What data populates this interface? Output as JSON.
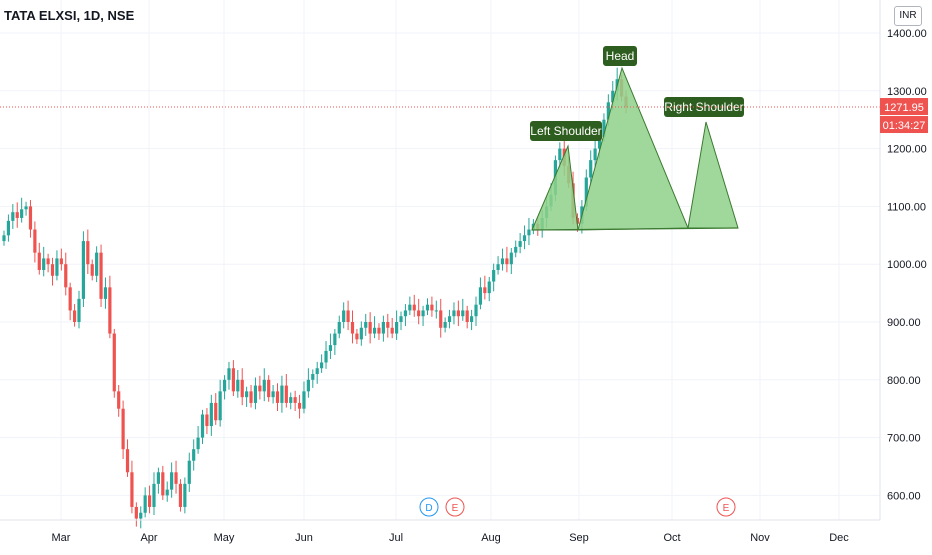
{
  "header": {
    "title": "TATA ELXSI, 1D, NSE"
  },
  "currency": "INR",
  "price_tag": {
    "price": "1271.95",
    "countdown": "01:34:27"
  },
  "event_markers": [
    "D",
    "E",
    "E"
  ],
  "colors": {
    "up": "#26a69a",
    "down": "#ef5350",
    "pattern_fill": "#8fd18a",
    "pattern_stroke": "#3b7a31",
    "label_bg": "#2e5e1f",
    "dividend": "#2196f3"
  },
  "chart_data": {
    "type": "candlestick",
    "title": "TATA ELXSI, 1D, NSE",
    "xlabel": "",
    "ylabel": "",
    "x_ticks": [
      "Mar",
      "Apr",
      "May",
      "Jun",
      "Jul",
      "Aug",
      "Sep",
      "Oct",
      "Nov",
      "Dec"
    ],
    "y_ticks": [
      "1400.00",
      "1300.00",
      "1200.00",
      "1100.00",
      "1000.00",
      "900.00",
      "800.00",
      "700.00",
      "600.00"
    ],
    "ylim": [
      560,
      1420
    ],
    "last_price": 1271.95,
    "closes": [
      1050,
      1075,
      1090,
      1080,
      1095,
      1100,
      1060,
      1020,
      990,
      1010,
      1000,
      980,
      1010,
      1000,
      960,
      920,
      900,
      940,
      1040,
      1000,
      980,
      1020,
      940,
      960,
      880,
      780,
      750,
      680,
      640,
      580,
      560,
      570,
      600,
      580,
      620,
      640,
      600,
      610,
      640,
      620,
      580,
      620,
      660,
      680,
      700,
      740,
      720,
      760,
      730,
      780,
      800,
      820,
      780,
      800,
      770,
      780,
      760,
      790,
      780,
      800,
      770,
      780,
      760,
      790,
      760,
      770,
      760,
      750,
      780,
      800,
      810,
      820,
      830,
      850,
      860,
      880,
      900,
      920,
      900,
      880,
      870,
      890,
      900,
      880,
      890,
      880,
      900,
      890,
      880,
      900,
      910,
      920,
      930,
      920,
      910,
      920,
      930,
      920,
      920,
      890,
      900,
      910,
      920,
      910,
      920,
      900,
      910,
      930,
      960,
      950,
      970,
      990,
      1000,
      1010,
      1000,
      1020,
      1030,
      1040,
      1050,
      1060,
      1070,
      1060,
      1080,
      1100,
      1120,
      1180,
      1200,
      1170,
      1140,
      1080,
      1070,
      1100,
      1150,
      1180,
      1200,
      1220,
      1250,
      1280,
      1300,
      1320,
      1290,
      1272
    ]
  },
  "pattern": {
    "labels": {
      "left": "Left Shoulder",
      "head": "Head",
      "right": "Right Shoulder"
    }
  }
}
